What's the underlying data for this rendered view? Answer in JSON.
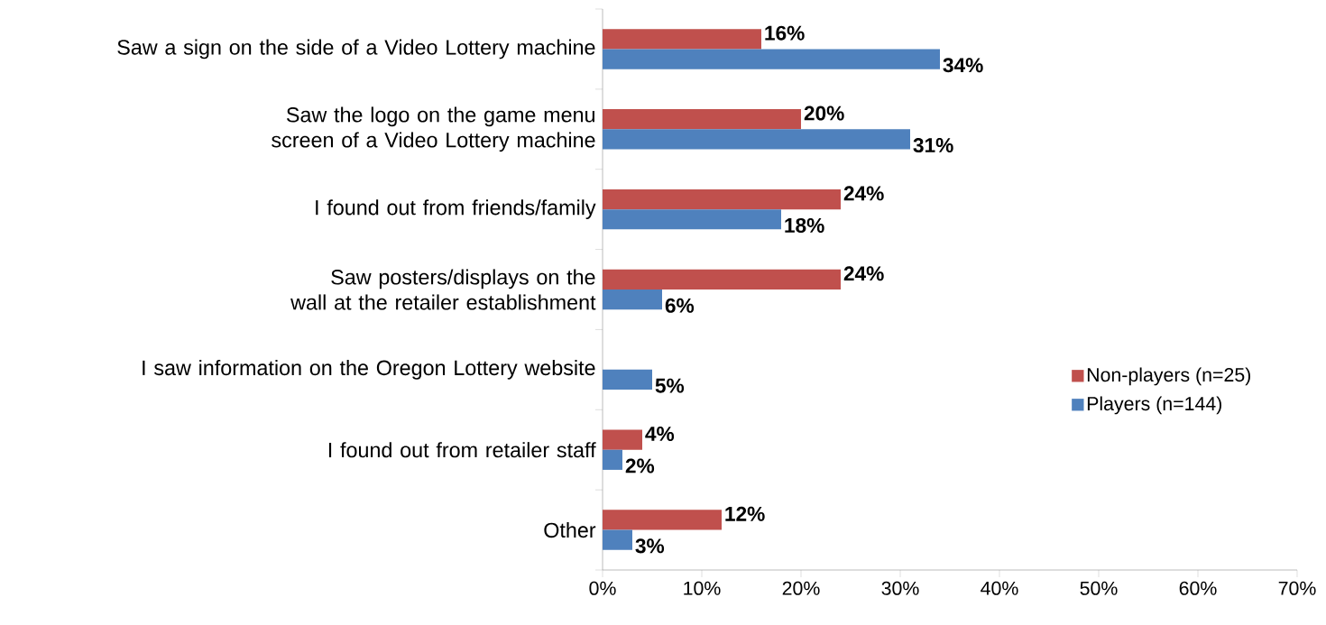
{
  "chart_data": {
    "type": "bar",
    "orientation": "horizontal",
    "categories": [
      "Saw a sign on the side of a Video Lottery machine",
      "Saw the logo on the game menu screen of a Video Lottery machine",
      "I found out from friends/family",
      "Saw posters/displays on the wall at the retailer establishment",
      "I saw information on the Oregon Lottery website",
      "I found out from retailer staff",
      "Other"
    ],
    "series": [
      {
        "name": "Non-players (n=25)",
        "color": "#c0504d",
        "values": [
          16,
          20,
          24,
          24,
          null,
          4,
          12
        ],
        "value_labels": [
          "16%",
          "20%",
          "24%",
          "24%",
          null,
          "4%",
          "12%"
        ]
      },
      {
        "name": "Players (n=144)",
        "color": "#4f81bd",
        "values": [
          34,
          31,
          18,
          6,
          5,
          2,
          3
        ],
        "value_labels": [
          "34%",
          "31%",
          "18%",
          "6%",
          "5%",
          "2%",
          "3%"
        ]
      }
    ],
    "xlim": [
      0,
      70
    ],
    "xticks": [
      {
        "value": 0,
        "label": "0%"
      },
      {
        "value": 10,
        "label": "10%"
      },
      {
        "value": 20,
        "label": "20%"
      },
      {
        "value": 30,
        "label": "30%"
      },
      {
        "value": 40,
        "label": "40%"
      },
      {
        "value": 50,
        "label": "50%"
      },
      {
        "value": 60,
        "label": "60%"
      },
      {
        "value": 70,
        "label": "70%"
      }
    ],
    "legend": "right",
    "grid": false
  }
}
